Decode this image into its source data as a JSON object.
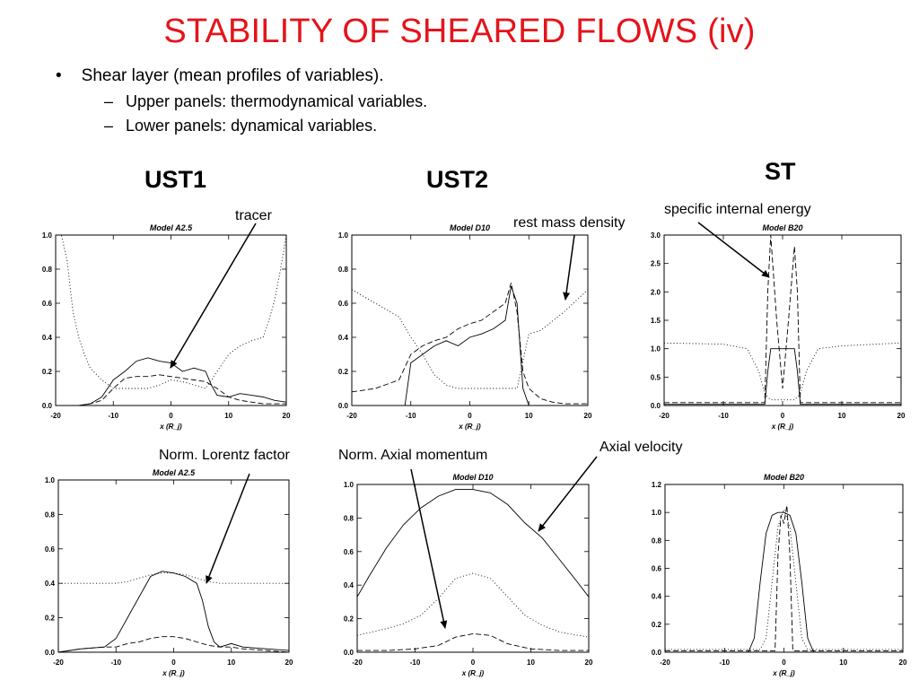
{
  "slide": {
    "title": "STABILITY OF SHEARED FLOWS (iv)",
    "bullet": "Shear layer (mean profiles of variables).",
    "subbullets": [
      "Upper panels: thermodynamical variables.",
      "Lower panels: dynamical variables."
    ]
  },
  "columns": {
    "col1": "UST1",
    "col2": "UST2",
    "col3": "ST"
  },
  "annotations": {
    "tracer": "tracer",
    "rest_mass_density": "rest mass density",
    "specific_internal_energy": "specific internal energy",
    "norm_lorentz_factor": "Norm. Lorentz factor",
    "norm_axial_momentum": "Norm. Axial momentum",
    "axial_velocity": "Axial velocity"
  },
  "chart_data": [
    {
      "type": "line",
      "title": "Model A2.5",
      "xlabel": "x (R_j)",
      "xlim": [
        -20,
        20
      ],
      "ylim": [
        0,
        1
      ],
      "xticks": [
        "-20",
        "-10",
        "0",
        "10",
        "20"
      ],
      "yticks": [
        "0.0",
        "0.2",
        "0.4",
        "0.6",
        "0.8",
        "1.0"
      ],
      "series": [
        {
          "name": "tracer",
          "style": "solid",
          "x": [
            -20,
            -16,
            -14,
            -12,
            -10,
            -8,
            -6,
            -4,
            -2,
            0,
            2,
            4,
            6,
            7,
            8,
            10,
            12,
            14,
            16,
            18,
            20
          ],
          "y": [
            0,
            0,
            0.01,
            0.05,
            0.15,
            0.2,
            0.26,
            0.28,
            0.26,
            0.25,
            0.2,
            0.22,
            0.2,
            0.12,
            0.06,
            0.05,
            0.07,
            0.06,
            0.05,
            0.03,
            0.02
          ]
        },
        {
          "style": "dashed",
          "x": [
            -20,
            -16,
            -14,
            -12,
            -10,
            -8,
            -6,
            -4,
            -2,
            0,
            2,
            4,
            6,
            8,
            10,
            12,
            14,
            16,
            18,
            20
          ],
          "y": [
            0,
            0,
            0.01,
            0.03,
            0.1,
            0.16,
            0.17,
            0.17,
            0.18,
            0.17,
            0.16,
            0.15,
            0.14,
            0.1,
            0.05,
            0.03,
            0.02,
            0.01,
            0.01,
            0.01
          ]
        },
        {
          "style": "dotted",
          "x": [
            -20,
            -19,
            -18,
            -17,
            -16,
            -15,
            -14,
            -12,
            -10,
            -8,
            -6,
            -4,
            -2,
            0,
            2,
            4,
            6,
            8,
            10,
            12,
            14,
            16,
            17,
            18,
            19,
            20
          ],
          "y": [
            1,
            1,
            0.85,
            0.55,
            0.4,
            0.3,
            0.22,
            0.15,
            0.1,
            0.1,
            0.1,
            0.1,
            0.12,
            0.15,
            0.14,
            0.12,
            0.1,
            0.2,
            0.3,
            0.35,
            0.38,
            0.4,
            0.5,
            0.62,
            0.8,
            1
          ]
        }
      ]
    },
    {
      "type": "line",
      "title": "Model D10",
      "xlabel": "x (R_j)",
      "xlim": [
        -20,
        20
      ],
      "ylim": [
        0,
        1
      ],
      "xticks": [
        "-20",
        "-10",
        "0",
        "10",
        "20"
      ],
      "yticks": [
        "0.0",
        "0.2",
        "0.4",
        "0.6",
        "0.8",
        "1.0"
      ],
      "series": [
        {
          "style": "solid",
          "x": [
            -20,
            -11,
            -10,
            -8,
            -6,
            -4,
            -2,
            0,
            2,
            4,
            6,
            7,
            8,
            9,
            10,
            12,
            20
          ],
          "y": [
            0,
            0,
            0.25,
            0.3,
            0.35,
            0.38,
            0.35,
            0.4,
            0.42,
            0.45,
            0.5,
            0.7,
            0.6,
            0.1,
            0,
            0,
            0
          ]
        },
        {
          "style": "dashed",
          "x": [
            -20,
            -16,
            -12,
            -10,
            -8,
            -6,
            -4,
            -2,
            0,
            2,
            4,
            6,
            7,
            8,
            9,
            10,
            12,
            14,
            16,
            20
          ],
          "y": [
            0.08,
            0.1,
            0.15,
            0.3,
            0.35,
            0.38,
            0.4,
            0.45,
            0.48,
            0.5,
            0.55,
            0.6,
            0.72,
            0.55,
            0.2,
            0.1,
            0.04,
            0.02,
            0.01,
            0.01
          ]
        },
        {
          "name": "rest mass density",
          "style": "dotted",
          "x": [
            -20,
            -16,
            -12,
            -10,
            -8,
            -6,
            -4,
            -2,
            0,
            2,
            4,
            6,
            8,
            10,
            12,
            16,
            20
          ],
          "y": [
            0.68,
            0.6,
            0.52,
            0.4,
            0.3,
            0.18,
            0.12,
            0.1,
            0.1,
            0.1,
            0.1,
            0.1,
            0.1,
            0.42,
            0.44,
            0.55,
            0.68
          ]
        }
      ]
    },
    {
      "type": "line",
      "title": "Model B20",
      "xlabel": "x (R_j)",
      "xlim": [
        -20,
        20
      ],
      "ylim": [
        0,
        3
      ],
      "xticks": [
        "-20",
        "-10",
        "0",
        "10",
        "20"
      ],
      "yticks": [
        "0.0",
        "0.5",
        "1.0",
        "1.5",
        "2.0",
        "2.5",
        "3.0"
      ],
      "series": [
        {
          "style": "solid",
          "x": [
            -20,
            -3,
            -2.5,
            -2,
            2,
            2.5,
            3,
            20
          ],
          "y": [
            0.02,
            0.02,
            0.6,
            1,
            1,
            0.6,
            0.02,
            0.02
          ]
        },
        {
          "name": "specific internal energy",
          "style": "dashed",
          "x": [
            -20,
            -3,
            -2.5,
            -2,
            -1,
            0,
            1,
            2,
            2.5,
            3,
            20
          ],
          "y": [
            0.05,
            0.05,
            2,
            3,
            1.5,
            0.3,
            1.5,
            2.8,
            2,
            0.05,
            0.05
          ]
        },
        {
          "style": "dotted",
          "x": [
            -20,
            -10,
            -6,
            -4,
            -3,
            -2,
            2,
            3,
            4,
            6,
            10,
            20
          ],
          "y": [
            1.1,
            1.08,
            1.0,
            0.6,
            0.2,
            0.1,
            0.1,
            0.2,
            0.6,
            1.0,
            1.05,
            1.1
          ]
        }
      ]
    },
    {
      "type": "line",
      "title": "Model A2.5",
      "xlabel": "x (R_j)",
      "xlim": [
        -20,
        20
      ],
      "ylim": [
        0,
        1
      ],
      "xticks": [
        "-20",
        "-10",
        "0",
        "10",
        "20"
      ],
      "yticks": [
        "0.0",
        "0.2",
        "0.4",
        "0.6",
        "0.8",
        "1.0"
      ],
      "series": [
        {
          "style": "solid",
          "x": [
            -20,
            -16,
            -12,
            -10,
            -8,
            -6,
            -4,
            -2,
            0,
            2,
            4,
            5,
            6,
            7,
            8,
            10,
            12,
            16,
            20
          ],
          "y": [
            0,
            0.02,
            0.03,
            0.08,
            0.2,
            0.32,
            0.44,
            0.47,
            0.46,
            0.44,
            0.4,
            0.3,
            0.15,
            0.06,
            0.03,
            0.05,
            0.03,
            0.02,
            0.01
          ]
        },
        {
          "style": "dashed",
          "x": [
            -20,
            -16,
            -12,
            -10,
            -8,
            -6,
            -4,
            -2,
            0,
            2,
            4,
            6,
            8,
            10,
            12,
            16,
            20
          ],
          "y": [
            0,
            0.02,
            0.03,
            0.03,
            0.05,
            0.06,
            0.08,
            0.09,
            0.09,
            0.08,
            0.06,
            0.04,
            0.03,
            0.03,
            0.02,
            0.01,
            0
          ]
        },
        {
          "name": "Norm. Lorentz factor",
          "style": "dotted",
          "x": [
            -20,
            -16,
            -12,
            -10,
            -8,
            -6,
            -4,
            -2,
            0,
            2,
            4,
            6,
            8,
            10,
            12,
            16,
            20
          ],
          "y": [
            0.4,
            0.4,
            0.4,
            0.4,
            0.41,
            0.43,
            0.45,
            0.46,
            0.46,
            0.45,
            0.43,
            0.41,
            0.4,
            0.4,
            0.4,
            0.4,
            0.4
          ]
        }
      ]
    },
    {
      "type": "line",
      "title": "Model D10",
      "xlabel": "x (R_j)",
      "xlim": [
        -20,
        20
      ],
      "ylim": [
        0,
        1
      ],
      "xticks": [
        "-20",
        "-10",
        "0",
        "10",
        "20"
      ],
      "yticks": [
        "0.0",
        "0.2",
        "0.4",
        "0.6",
        "0.8",
        "1.0"
      ],
      "series": [
        {
          "name": "Axial velocity",
          "style": "solid",
          "x": [
            -20,
            -18,
            -15,
            -12,
            -9,
            -6,
            -3,
            0,
            3,
            6,
            9,
            12,
            15,
            18,
            20
          ],
          "y": [
            0.33,
            0.45,
            0.62,
            0.76,
            0.86,
            0.93,
            0.97,
            0.97,
            0.95,
            0.88,
            0.77,
            0.68,
            0.55,
            0.42,
            0.33
          ]
        },
        {
          "style": "dotted",
          "x": [
            -20,
            -15,
            -12,
            -9,
            -6,
            -3,
            0,
            3,
            6,
            9,
            12,
            15,
            20
          ],
          "y": [
            0.1,
            0.14,
            0.17,
            0.22,
            0.32,
            0.44,
            0.47,
            0.44,
            0.33,
            0.22,
            0.16,
            0.12,
            0.09
          ]
        },
        {
          "name": "Norm. Axial momentum",
          "style": "dashed",
          "x": [
            -20,
            -15,
            -10,
            -6,
            -3,
            0,
            3,
            6,
            10,
            15,
            20
          ],
          "y": [
            0.01,
            0.01,
            0.02,
            0.04,
            0.09,
            0.11,
            0.1,
            0.05,
            0.02,
            0.01,
            0.01
          ]
        }
      ]
    },
    {
      "type": "line",
      "title": "Model B20",
      "xlabel": "x (R_j)",
      "xlim": [
        -20,
        20
      ],
      "ylim": [
        0,
        1.2
      ],
      "xticks": [
        "-20",
        "-10",
        "0",
        "10",
        "20"
      ],
      "yticks": [
        "0.0",
        "0.2",
        "0.4",
        "0.6",
        "0.8",
        "1.0",
        "1.2"
      ],
      "series": [
        {
          "style": "solid",
          "x": [
            -20,
            -6,
            -5,
            -4,
            -3,
            -2,
            -1,
            0,
            1,
            2,
            3,
            4,
            5,
            6,
            20
          ],
          "y": [
            0,
            0,
            0.1,
            0.5,
            0.85,
            0.98,
            1.0,
            1.0,
            0.98,
            0.85,
            0.5,
            0.1,
            0,
            0,
            0
          ]
        },
        {
          "style": "dotted",
          "x": [
            -20,
            -4,
            -3,
            -2,
            -1,
            0,
            1,
            2,
            3,
            4,
            20
          ],
          "y": [
            0.02,
            0.02,
            0.1,
            0.5,
            0.9,
            1.02,
            0.9,
            0.5,
            0.1,
            0.02,
            0.02
          ]
        },
        {
          "style": "dashed",
          "x": [
            -20,
            -1.5,
            -1,
            -0.5,
            0,
            0.5,
            1,
            1.5,
            20
          ],
          "y": [
            0.01,
            0.01,
            0.7,
            0.98,
            0.92,
            1.05,
            0.7,
            0.01,
            0.01
          ]
        }
      ]
    }
  ]
}
